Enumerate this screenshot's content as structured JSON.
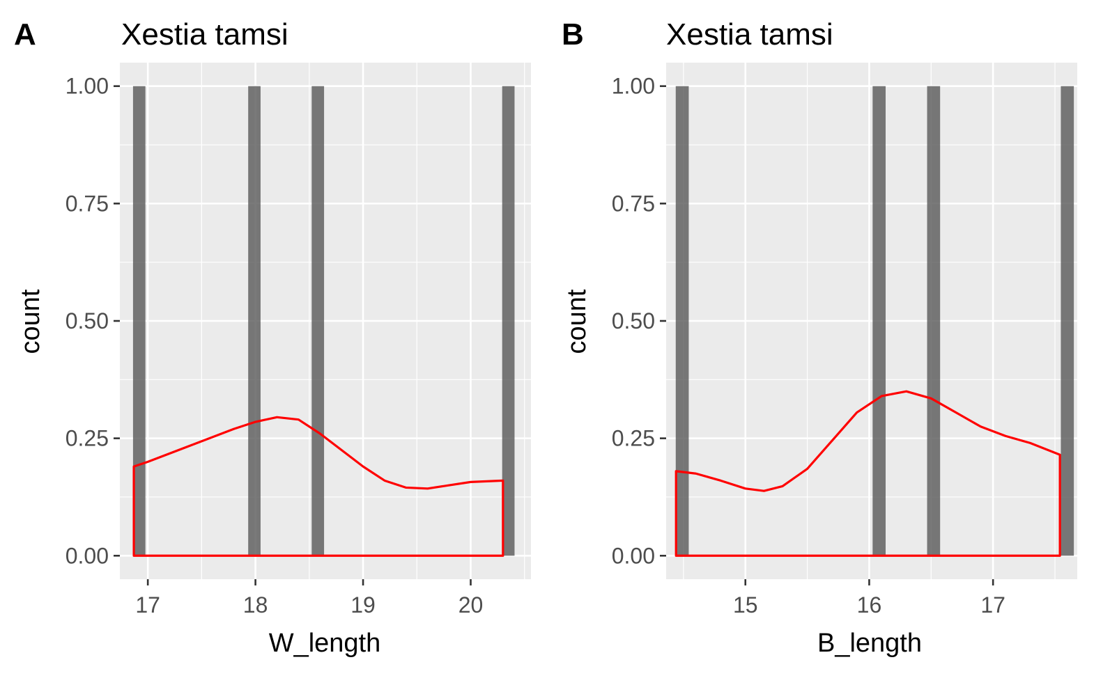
{
  "chart_data": [
    {
      "type": "bar",
      "panel_tag": "A",
      "title": "Xestia tamsi",
      "xlabel": "W_length",
      "ylabel": "count",
      "xlim": [
        16.74,
        20.56
      ],
      "ylim": [
        -0.05,
        1.05
      ],
      "x_ticks": [
        17,
        18,
        19,
        20
      ],
      "x_tick_labels": [
        "17",
        "18",
        "19",
        "20"
      ],
      "y_ticks": [
        0,
        0.25,
        0.5,
        0.75,
        1.0
      ],
      "y_tick_labels": [
        "0.00",
        "0.25",
        "0.50",
        "0.75",
        "1.00"
      ],
      "bar_width": 0.115,
      "bars": [
        {
          "x": 16.92,
          "count": 1
        },
        {
          "x": 17.99,
          "count": 1
        },
        {
          "x": 18.58,
          "count": 1
        },
        {
          "x": 20.35,
          "count": 1
        }
      ],
      "density": {
        "color": "#ff0000",
        "x": [
          16.87,
          17.0,
          17.4,
          17.8,
          18.0,
          18.2,
          18.4,
          18.6,
          18.8,
          19.0,
          19.2,
          19.4,
          19.6,
          19.8,
          20.0,
          20.3
        ],
        "y": [
          0.19,
          0.2,
          0.235,
          0.27,
          0.285,
          0.295,
          0.29,
          0.26,
          0.225,
          0.19,
          0.16,
          0.145,
          0.143,
          0.15,
          0.157,
          0.16
        ]
      },
      "grid": true
    },
    {
      "type": "bar",
      "panel_tag": "B",
      "title": "Xestia tamsi",
      "xlabel": "B_length",
      "ylabel": "count",
      "xlim": [
        14.36,
        17.68
      ],
      "ylim": [
        -0.05,
        1.05
      ],
      "x_ticks": [
        15,
        16,
        17
      ],
      "x_tick_labels": [
        "15",
        "16",
        "17"
      ],
      "y_ticks": [
        0,
        0.25,
        0.5,
        0.75,
        1.0
      ],
      "y_tick_labels": [
        "0.00",
        "0.25",
        "0.50",
        "0.75",
        "1.00"
      ],
      "bar_width": 0.105,
      "bars": [
        {
          "x": 14.49,
          "count": 1
        },
        {
          "x": 16.08,
          "count": 1
        },
        {
          "x": 16.52,
          "count": 1
        },
        {
          "x": 17.6,
          "count": 1
        }
      ],
      "density": {
        "color": "#ff0000",
        "x": [
          14.44,
          14.6,
          14.8,
          15.0,
          15.15,
          15.3,
          15.5,
          15.7,
          15.9,
          16.1,
          16.3,
          16.5,
          16.7,
          16.9,
          17.1,
          17.3,
          17.54
        ],
        "y": [
          0.18,
          0.175,
          0.16,
          0.143,
          0.138,
          0.148,
          0.185,
          0.245,
          0.305,
          0.34,
          0.35,
          0.335,
          0.305,
          0.275,
          0.255,
          0.24,
          0.215
        ]
      },
      "grid": true
    }
  ],
  "colors": {
    "panel_background": "#ebebeb",
    "gridline": "#ffffff",
    "bar_fill": "#595959",
    "bar_opacity": 0.8,
    "density_line": "#ff0000"
  }
}
